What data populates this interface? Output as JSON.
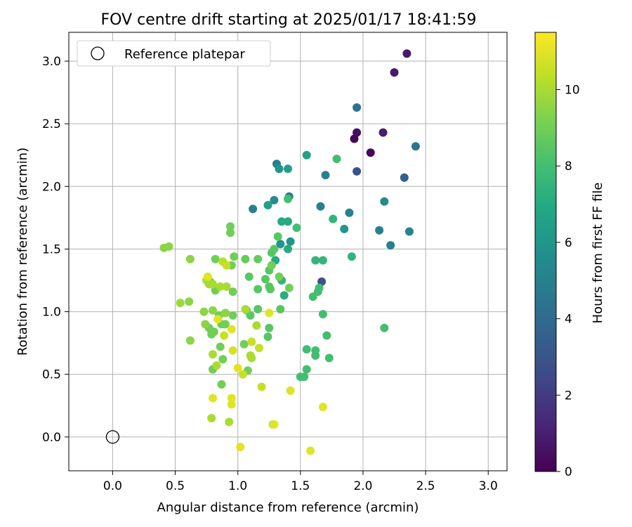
{
  "chart_data": {
    "type": "scatter",
    "title": "FOV centre drift starting at 2025/01/17 18:41:59",
    "xlabel": "Angular distance from reference (arcmin)",
    "ylabel": "Rotation from reference (arcmin)",
    "xlim": [
      -0.35,
      3.15
    ],
    "ylim": [
      -0.27,
      3.23
    ],
    "xticks": [
      0.0,
      0.5,
      1.0,
      1.5,
      2.0,
      2.5,
      3.0
    ],
    "yticks": [
      0.0,
      0.5,
      1.0,
      1.5,
      2.0,
      2.5,
      3.0
    ],
    "grid": true,
    "legend": {
      "position": "top-left",
      "entries": [
        "Reference platepar"
      ]
    },
    "reference": {
      "x": 0.0,
      "y": 0.0,
      "label": "Reference platepar"
    },
    "colorbar": {
      "label": "Hours from first FF file",
      "min": 0,
      "max": 11.5,
      "ticks": [
        0,
        2,
        4,
        6,
        8,
        10
      ],
      "colormap": "viridis"
    },
    "series": [
      {
        "points": [
          [
            2.35,
            3.06,
            0.8
          ],
          [
            2.25,
            2.91,
            0.8
          ],
          [
            1.95,
            2.43,
            0.5
          ],
          [
            1.93,
            2.38,
            0.3
          ],
          [
            2.06,
            2.27,
            0.2
          ],
          [
            2.16,
            2.43,
            1.0
          ],
          [
            1.95,
            2.63,
            4.3
          ],
          [
            2.42,
            2.32,
            4.5
          ],
          [
            1.95,
            2.12,
            3.0
          ],
          [
            2.33,
            2.07,
            3.5
          ],
          [
            1.67,
            1.24,
            3.0
          ],
          [
            1.31,
            2.18,
            5.0
          ],
          [
            1.12,
            1.82,
            5.0
          ],
          [
            1.29,
            1.89,
            5.5
          ],
          [
            1.41,
            1.92,
            5.0
          ],
          [
            1.7,
            2.09,
            5.0
          ],
          [
            1.66,
            1.84,
            5.0
          ],
          [
            1.89,
            1.79,
            5.0
          ],
          [
            2.13,
            1.65,
            5.0
          ],
          [
            2.22,
            1.53,
            5.0
          ],
          [
            2.37,
            1.64,
            5.2
          ],
          [
            2.17,
            1.88,
            5.5
          ],
          [
            1.33,
            2.14,
            6.0
          ],
          [
            1.4,
            2.14,
            6.5
          ],
          [
            1.55,
            2.25,
            6.5
          ],
          [
            1.85,
            1.66,
            6.0
          ],
          [
            1.34,
            1.54,
            6.0
          ],
          [
            1.42,
            1.56,
            6.0
          ],
          [
            1.24,
            1.85,
            6.5
          ],
          [
            1.35,
            1.72,
            7.0
          ],
          [
            1.4,
            1.72,
            7.0
          ],
          [
            1.4,
            1.5,
            7.0
          ],
          [
            1.3,
            1.41,
            7.0
          ],
          [
            1.37,
            1.13,
            7.2
          ],
          [
            1.35,
            1.25,
            7.5
          ],
          [
            1.62,
            1.41,
            7.5
          ],
          [
            1.68,
            1.41,
            7.5
          ],
          [
            1.76,
            1.74,
            7.5
          ],
          [
            1.79,
            2.22,
            8.0
          ],
          [
            1.47,
            1.67,
            8.0
          ],
          [
            1.4,
            1.9,
            8.0
          ],
          [
            1.91,
            1.44,
            7.5
          ],
          [
            2.17,
            0.87,
            8.0
          ],
          [
            1.68,
            0.98,
            8.0
          ],
          [
            1.71,
            0.81,
            8.0
          ],
          [
            1.73,
            0.63,
            8.0
          ],
          [
            1.62,
            0.69,
            8.0
          ],
          [
            1.62,
            0.65,
            8.0
          ],
          [
            1.55,
            0.7,
            8.0
          ],
          [
            1.55,
            0.54,
            8.0
          ],
          [
            1.53,
            0.48,
            8.0
          ],
          [
            1.5,
            0.48,
            8.0
          ],
          [
            1.64,
            1.16,
            8.0
          ],
          [
            1.65,
            1.19,
            8.0
          ],
          [
            1.6,
            1.12,
            8.0
          ],
          [
            1.32,
            1.6,
            8.5
          ],
          [
            1.27,
            1.47,
            8.5
          ],
          [
            1.29,
            1.5,
            8.5
          ],
          [
            1.25,
            1.33,
            8.5
          ],
          [
            1.26,
            1.18,
            8.5
          ],
          [
            1.25,
            1.2,
            8.5
          ],
          [
            1.22,
            1.26,
            8.5
          ],
          [
            1.16,
            1.18,
            8.5
          ],
          [
            1.09,
            1.28,
            8.5
          ],
          [
            1.1,
            0.97,
            8.5
          ],
          [
            1.16,
            1.02,
            8.5
          ],
          [
            1.24,
            0.8,
            8.5
          ],
          [
            1.25,
            0.87,
            8.5
          ],
          [
            1.34,
            1.02,
            8.5
          ],
          [
            1.41,
            1.19,
            9.0
          ],
          [
            1.33,
            1.28,
            9.0
          ],
          [
            1.06,
            1.42,
            8.8
          ],
          [
            1.16,
            1.42,
            8.8
          ],
          [
            1.27,
            1.37,
            9.0
          ],
          [
            0.94,
            1.68,
            9.0
          ],
          [
            0.94,
            1.63,
            9.0
          ],
          [
            0.97,
            1.44,
            9.0
          ],
          [
            0.95,
            1.37,
            9.0
          ],
          [
            0.96,
            1.16,
            9.0
          ],
          [
            0.82,
            1.42,
            9.0
          ],
          [
            0.82,
            1.17,
            9.0
          ],
          [
            0.85,
            0.97,
            9.0
          ],
          [
            0.87,
            0.9,
            9.0
          ],
          [
            0.9,
            0.9,
            9.0
          ],
          [
            0.96,
            0.97,
            9.0
          ],
          [
            0.81,
            0.84,
            9.0
          ],
          [
            0.86,
            0.72,
            9.0
          ],
          [
            0.88,
            0.62,
            9.0
          ],
          [
            0.87,
            0.42,
            9.0
          ],
          [
            0.8,
            0.54,
            9.0
          ],
          [
            0.79,
            0.82,
            9.0
          ],
          [
            0.77,
            0.87,
            9.0
          ],
          [
            1.05,
            0.74,
            9.0
          ],
          [
            1.07,
            1.01,
            9.0
          ],
          [
            1.08,
            0.53,
            9.0
          ],
          [
            0.62,
            1.42,
            9.5
          ],
          [
            0.54,
            1.07,
            9.8
          ],
          [
            0.61,
            1.08,
            9.5
          ],
          [
            0.73,
            1.0,
            9.5
          ],
          [
            0.74,
            0.9,
            9.5
          ],
          [
            0.8,
            1.01,
            9.5
          ],
          [
            0.9,
            0.99,
            9.5
          ],
          [
            0.62,
            0.77,
            9.5
          ],
          [
            0.41,
            1.51,
            9.5
          ],
          [
            0.45,
            1.52,
            9.5
          ],
          [
            0.78,
            1.24,
            9.5
          ],
          [
            0.8,
            1.22,
            10.0
          ],
          [
            0.86,
            1.2,
            10.0
          ],
          [
            0.91,
            1.2,
            10.0
          ],
          [
            0.75,
            1.25,
            10.0
          ],
          [
            0.77,
            1.22,
            10.0
          ],
          [
            0.8,
            0.66,
            10.0
          ],
          [
            0.83,
            0.57,
            10.0
          ],
          [
            0.89,
            0.81,
            10.5
          ],
          [
            1.06,
            1.02,
            10.0
          ],
          [
            1.11,
            0.63,
            10.0
          ],
          [
            1.1,
            0.65,
            10.0
          ],
          [
            1.15,
            0.89,
            10.0
          ],
          [
            1.17,
            0.71,
            10.5
          ],
          [
            1.11,
            0.76,
            10.5
          ],
          [
            1.04,
            0.5,
            10.5
          ],
          [
            1.19,
            0.4,
            10.5
          ],
          [
            0.88,
            1.4,
            10.3
          ],
          [
            0.91,
            1.37,
            10.5
          ],
          [
            0.93,
            0.12,
            10.0
          ],
          [
            0.79,
            0.15,
            10.0
          ],
          [
            1.28,
            0.1,
            10.3
          ],
          [
            1.29,
            0.1,
            11.0
          ],
          [
            0.95,
            0.31,
            11.0
          ],
          [
            0.95,
            0.26,
            11.0
          ],
          [
            0.8,
            0.31,
            11.0
          ],
          [
            0.96,
            0.69,
            10.8
          ],
          [
            1.0,
            0.55,
            11.0
          ],
          [
            0.95,
            0.86,
            11.0
          ],
          [
            0.84,
            0.94,
            11.0
          ],
          [
            0.76,
            1.28,
            11.0
          ],
          [
            1.25,
            0.99,
            11.0
          ],
          [
            1.42,
            0.37,
            11.0
          ],
          [
            1.68,
            0.24,
            11.0
          ],
          [
            1.02,
            -0.08,
            11.0
          ],
          [
            1.58,
            -0.11,
            11.0
          ]
        ]
      }
    ]
  }
}
